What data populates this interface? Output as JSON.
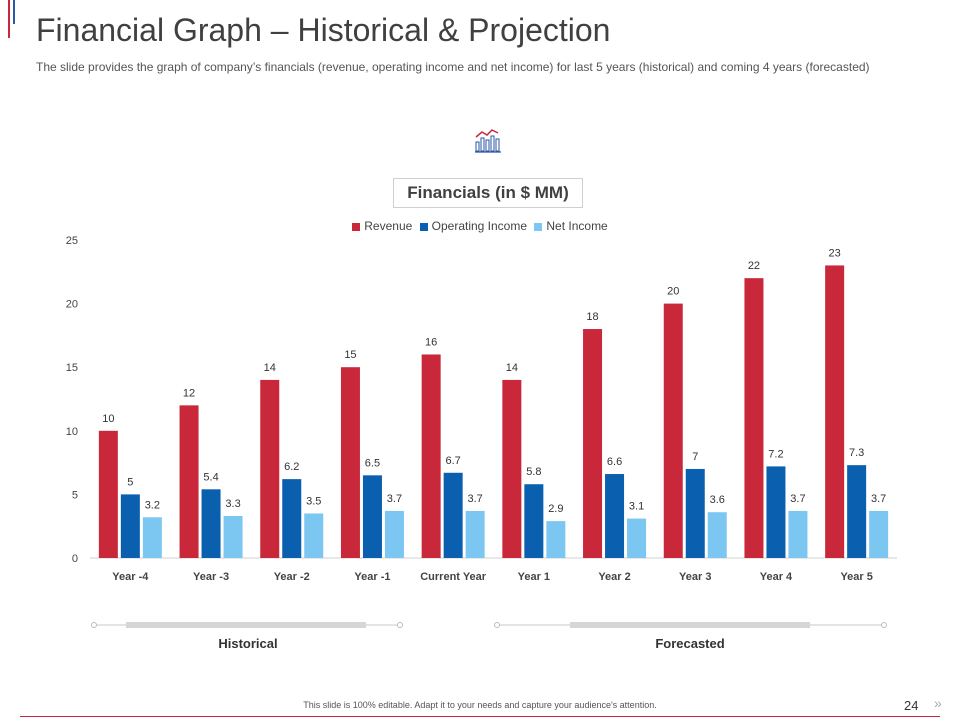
{
  "slide": {
    "title": "Financial Graph – Historical & Projection",
    "subtitle": "The slide provides the graph of company’s financials (revenue, operating income and net income) for last 5 years (historical) and coming 4 years (forecasted)",
    "footer": "This slide is 100% editable. Adapt it to your needs and capture your audience's attention.",
    "page_number": "24",
    "next_glyph": "»",
    "icon": "bar-chart-icon",
    "periods": {
      "historical": "Historical",
      "forecasted": "Forecasted"
    }
  },
  "chart_data": {
    "type": "bar",
    "title": "Financials (in $ MM)",
    "categories": [
      "Year -4",
      "Year -3",
      "Year -2",
      "Year -1",
      "Current Year",
      "Year 1",
      "Year 2",
      "Year 3",
      "Year 4",
      "Year 5"
    ],
    "series": [
      {
        "name": "Revenue",
        "color": "#c8283a",
        "values": [
          10,
          12,
          14,
          15,
          16,
          14,
          18,
          20,
          22,
          23
        ]
      },
      {
        "name": "Operating Income",
        "color": "#0a5fae",
        "values": [
          5,
          5.4,
          6.2,
          6.5,
          6.7,
          5.8,
          6.6,
          7,
          7.2,
          7.3
        ]
      },
      {
        "name": "Net Income",
        "color": "#7cc6f2",
        "values": [
          3.2,
          3.3,
          3.5,
          3.7,
          3.7,
          2.9,
          3.1,
          3.6,
          3.7,
          3.7
        ]
      }
    ],
    "ylim": [
      0,
      25
    ],
    "yticks": [
      0,
      5,
      10,
      15,
      20,
      25
    ],
    "grid": false,
    "legend_position": "top"
  }
}
